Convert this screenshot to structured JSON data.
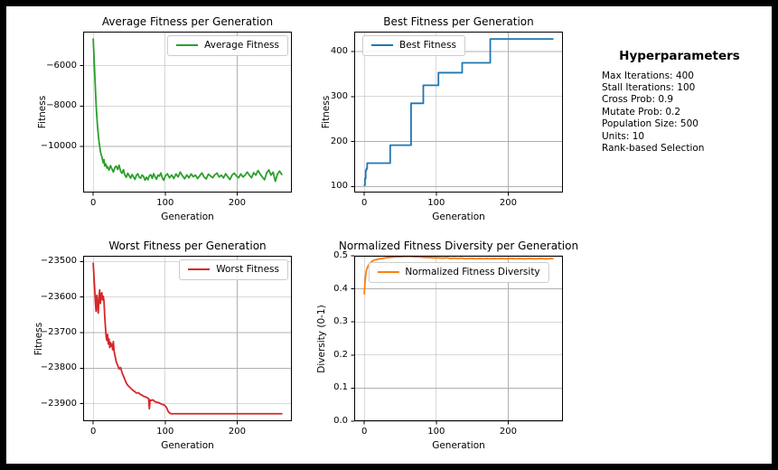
{
  "figure": {
    "background": "#ffffff",
    "frame_color": "#000000",
    "grid_color": "#b0b0b0",
    "spine_color": "#000000",
    "grid": true
  },
  "annotation": {
    "title": "Hyperparameters",
    "lines": [
      "Max Iterations: 400",
      "Stall Iterations: 100",
      "Cross Prob: 0.9",
      "Mutate Prob: 0.2",
      "Population Size: 500",
      "Units: 10",
      "Rank-based Selection"
    ]
  },
  "chart_data": [
    {
      "type": "line",
      "title": "Average Fitness per Generation",
      "xlabel": "Generation",
      "ylabel": "Fitness",
      "legend": "Average Fitness",
      "legend_pos": "upper right",
      "color": "#2ca02c",
      "step": false,
      "grid": true,
      "xlim": [
        -14,
        276
      ],
      "ylim": [
        -12293,
        -4307
      ],
      "xticks": {
        "values": [
          0,
          100,
          200
        ],
        "labels": [
          "0",
          "100",
          "200"
        ]
      },
      "yticks": {
        "values": [
          -6000,
          -8000,
          -10000
        ],
        "labels": [
          "−6000",
          "−8000",
          "−10000"
        ]
      },
      "points": [
        [
          0,
          -4670
        ],
        [
          1,
          -5450
        ],
        [
          2,
          -6300
        ],
        [
          3,
          -7100
        ],
        [
          4,
          -7900
        ],
        [
          5,
          -8500
        ],
        [
          6,
          -9000
        ],
        [
          7,
          -9400
        ],
        [
          8,
          -9750
        ],
        [
          9,
          -10000
        ],
        [
          10,
          -10250
        ],
        [
          11,
          -10400
        ],
        [
          12,
          -10520
        ],
        [
          13,
          -10680
        ],
        [
          14,
          -10820
        ],
        [
          15,
          -10660
        ],
        [
          16,
          -10980
        ],
        [
          17,
          -10870
        ],
        [
          18,
          -10920
        ],
        [
          19,
          -11080
        ],
        [
          20,
          -11020
        ],
        [
          22,
          -11180
        ],
        [
          24,
          -10960
        ],
        [
          26,
          -11120
        ],
        [
          28,
          -11280
        ],
        [
          30,
          -11060
        ],
        [
          32,
          -10980
        ],
        [
          34,
          -11150
        ],
        [
          36,
          -10940
        ],
        [
          38,
          -11230
        ],
        [
          40,
          -11340
        ],
        [
          42,
          -11160
        ],
        [
          44,
          -11420
        ],
        [
          46,
          -11540
        ],
        [
          48,
          -11330
        ],
        [
          50,
          -11460
        ],
        [
          52,
          -11580
        ],
        [
          54,
          -11400
        ],
        [
          56,
          -11520
        ],
        [
          58,
          -11640
        ],
        [
          60,
          -11440
        ],
        [
          62,
          -11360
        ],
        [
          64,
          -11540
        ],
        [
          66,
          -11580
        ],
        [
          68,
          -11420
        ],
        [
          70,
          -11500
        ],
        [
          72,
          -11680
        ],
        [
          74,
          -11540
        ],
        [
          76,
          -11660
        ],
        [
          78,
          -11460
        ],
        [
          80,
          -11410
        ],
        [
          82,
          -11590
        ],
        [
          84,
          -11360
        ],
        [
          86,
          -11520
        ],
        [
          88,
          -11630
        ],
        [
          90,
          -11430
        ],
        [
          92,
          -11480
        ],
        [
          94,
          -11320
        ],
        [
          96,
          -11570
        ],
        [
          98,
          -11680
        ],
        [
          100,
          -11480
        ],
        [
          103,
          -11360
        ],
        [
          106,
          -11560
        ],
        [
          109,
          -11420
        ],
        [
          112,
          -11600
        ],
        [
          115,
          -11370
        ],
        [
          118,
          -11520
        ],
        [
          121,
          -11280
        ],
        [
          124,
          -11460
        ],
        [
          127,
          -11610
        ],
        [
          130,
          -11420
        ],
        [
          133,
          -11560
        ],
        [
          136,
          -11370
        ],
        [
          139,
          -11510
        ],
        [
          142,
          -11430
        ],
        [
          145,
          -11600
        ],
        [
          148,
          -11460
        ],
        [
          151,
          -11320
        ],
        [
          154,
          -11520
        ],
        [
          157,
          -11620
        ],
        [
          160,
          -11380
        ],
        [
          163,
          -11470
        ],
        [
          166,
          -11560
        ],
        [
          169,
          -11410
        ],
        [
          172,
          -11330
        ],
        [
          175,
          -11520
        ],
        [
          178,
          -11430
        ],
        [
          181,
          -11570
        ],
        [
          184,
          -11360
        ],
        [
          187,
          -11510
        ],
        [
          190,
          -11650
        ],
        [
          193,
          -11420
        ],
        [
          196,
          -11330
        ],
        [
          199,
          -11470
        ],
        [
          202,
          -11560
        ],
        [
          205,
          -11370
        ],
        [
          208,
          -11520
        ],
        [
          211,
          -11430
        ],
        [
          214,
          -11280
        ],
        [
          217,
          -11430
        ],
        [
          220,
          -11560
        ],
        [
          223,
          -11310
        ],
        [
          226,
          -11430
        ],
        [
          229,
          -11200
        ],
        [
          232,
          -11380
        ],
        [
          235,
          -11520
        ],
        [
          238,
          -11660
        ],
        [
          241,
          -11320
        ],
        [
          244,
          -11170
        ],
        [
          247,
          -11430
        ],
        [
          250,
          -11280
        ],
        [
          253,
          -11740
        ],
        [
          256,
          -11380
        ],
        [
          259,
          -11230
        ],
        [
          262,
          -11400
        ]
      ]
    },
    {
      "type": "line",
      "title": "Best Fitness per Generation",
      "xlabel": "Generation",
      "ylabel": "Fitness",
      "legend": "Best Fitness",
      "legend_pos": "upper left",
      "color": "#1f77b4",
      "step": true,
      "grid": true,
      "xlim": [
        -14,
        276
      ],
      "ylim": [
        86.75,
        444.25
      ],
      "xticks": {
        "values": [
          0,
          100,
          200
        ],
        "labels": [
          "0",
          "100",
          "200"
        ]
      },
      "yticks": {
        "values": [
          100,
          200,
          300,
          400
        ],
        "labels": [
          "100",
          "200",
          "300",
          "400"
        ]
      },
      "points": [
        [
          0,
          103
        ],
        [
          1,
          118
        ],
        [
          2,
          136
        ],
        [
          3,
          140
        ],
        [
          4,
          152
        ],
        [
          35,
          152
        ],
        [
          36,
          192
        ],
        [
          64,
          192
        ],
        [
          65,
          285
        ],
        [
          81,
          285
        ],
        [
          82,
          325
        ],
        [
          102,
          325
        ],
        [
          103,
          353
        ],
        [
          135,
          353
        ],
        [
          136,
          375
        ],
        [
          174,
          375
        ],
        [
          175,
          428
        ],
        [
          262,
          428
        ]
      ]
    },
    {
      "type": "line",
      "title": "Worst Fitness per Generation",
      "xlabel": "Generation",
      "ylabel": "Fitness",
      "legend": "Worst Fitness",
      "legend_pos": "upper right",
      "color": "#d62728",
      "step": false,
      "grid": true,
      "xlim": [
        -14,
        276
      ],
      "ylim": [
        -23949,
        -23484
      ],
      "xticks": {
        "values": [
          0,
          100,
          200
        ],
        "labels": [
          "0",
          "100",
          "200"
        ]
      },
      "yticks": {
        "values": [
          -23500,
          -23600,
          -23700,
          -23800,
          -23900
        ],
        "labels": [
          "−23500",
          "−23600",
          "−23700",
          "−23800",
          "−23900"
        ]
      },
      "points": [
        [
          0,
          -23505
        ],
        [
          1,
          -23540
        ],
        [
          2,
          -23575
        ],
        [
          3,
          -23615
        ],
        [
          4,
          -23640
        ],
        [
          5,
          -23595
        ],
        [
          6,
          -23625
        ],
        [
          7,
          -23645
        ],
        [
          8,
          -23600
        ],
        [
          9,
          -23580
        ],
        [
          10,
          -23618
        ],
        [
          11,
          -23592
        ],
        [
          12,
          -23588
        ],
        [
          13,
          -23608
        ],
        [
          14,
          -23598
        ],
        [
          15,
          -23612
        ],
        [
          16,
          -23655
        ],
        [
          17,
          -23685
        ],
        [
          18,
          -23712
        ],
        [
          19,
          -23722
        ],
        [
          20,
          -23705
        ],
        [
          21,
          -23732
        ],
        [
          22,
          -23718
        ],
        [
          23,
          -23742
        ],
        [
          24,
          -23728
        ],
        [
          25,
          -23738
        ],
        [
          26,
          -23732
        ],
        [
          27,
          -23748
        ],
        [
          28,
          -23725
        ],
        [
          29,
          -23752
        ],
        [
          30,
          -23762
        ],
        [
          32,
          -23782
        ],
        [
          34,
          -23792
        ],
        [
          36,
          -23802
        ],
        [
          38,
          -23798
        ],
        [
          40,
          -23812
        ],
        [
          42,
          -23822
        ],
        [
          44,
          -23832
        ],
        [
          46,
          -23842
        ],
        [
          48,
          -23848
        ],
        [
          50,
          -23852
        ],
        [
          52,
          -23856
        ],
        [
          55,
          -23862
        ],
        [
          58,
          -23866
        ],
        [
          60,
          -23870
        ],
        [
          63,
          -23869
        ],
        [
          65,
          -23873
        ],
        [
          68,
          -23876
        ],
        [
          70,
          -23879
        ],
        [
          73,
          -23881
        ],
        [
          75,
          -23883
        ],
        [
          77,
          -23886
        ],
        [
          78,
          -23914
        ],
        [
          79,
          -23889
        ],
        [
          80,
          -23891
        ],
        [
          83,
          -23889
        ],
        [
          85,
          -23893
        ],
        [
          88,
          -23896
        ],
        [
          90,
          -23896
        ],
        [
          93,
          -23899
        ],
        [
          95,
          -23901
        ],
        [
          98,
          -23903
        ],
        [
          100,
          -23906
        ],
        [
          102,
          -23911
        ],
        [
          104,
          -23921
        ],
        [
          106,
          -23926
        ],
        [
          108,
          -23928
        ],
        [
          262,
          -23928
        ]
      ]
    },
    {
      "type": "line",
      "title": "Normalized Fitness Diversity per Generation",
      "xlabel": "Generation",
      "ylabel": "Diversity (0-1)",
      "legend": "Normalized Fitness Diversity",
      "legend_pos": "upper center",
      "color": "#ff7f0e",
      "step": false,
      "grid": true,
      "xlim": [
        -14,
        276
      ],
      "ylim": [
        0,
        0.5
      ],
      "xticks": {
        "values": [
          0,
          100,
          200
        ],
        "labels": [
          "0",
          "100",
          "200"
        ]
      },
      "yticks": {
        "values": [
          0.0,
          0.1,
          0.2,
          0.3,
          0.4,
          0.5
        ],
        "labels": [
          "0.0",
          "0.1",
          "0.2",
          "0.3",
          "0.4",
          "0.5"
        ]
      },
      "points": [
        [
          0,
          0.385
        ],
        [
          1,
          0.422
        ],
        [
          2,
          0.442
        ],
        [
          3,
          0.456
        ],
        [
          4,
          0.463
        ],
        [
          5,
          0.468
        ],
        [
          6,
          0.472
        ],
        [
          8,
          0.478
        ],
        [
          10,
          0.482
        ],
        [
          12,
          0.485
        ],
        [
          14,
          0.487
        ],
        [
          16,
          0.488
        ],
        [
          18,
          0.489
        ],
        [
          20,
          0.49
        ],
        [
          25,
          0.492
        ],
        [
          30,
          0.494
        ],
        [
          35,
          0.495
        ],
        [
          40,
          0.496
        ],
        [
          45,
          0.497
        ],
        [
          50,
          0.497
        ],
        [
          55,
          0.498
        ],
        [
          60,
          0.498
        ],
        [
          65,
          0.498
        ],
        [
          70,
          0.497
        ],
        [
          75,
          0.497
        ],
        [
          80,
          0.496
        ],
        [
          85,
          0.495
        ],
        [
          90,
          0.495
        ],
        [
          95,
          0.494
        ],
        [
          100,
          0.494
        ],
        [
          110,
          0.493
        ],
        [
          115,
          0.494
        ],
        [
          120,
          0.492
        ],
        [
          125,
          0.493
        ],
        [
          130,
          0.492
        ],
        [
          135,
          0.493
        ],
        [
          140,
          0.491
        ],
        [
          145,
          0.492
        ],
        [
          150,
          0.492
        ],
        [
          155,
          0.491
        ],
        [
          160,
          0.492
        ],
        [
          165,
          0.491
        ],
        [
          170,
          0.492
        ],
        [
          175,
          0.491
        ],
        [
          180,
          0.492
        ],
        [
          185,
          0.491
        ],
        [
          190,
          0.492
        ],
        [
          195,
          0.491
        ],
        [
          200,
          0.491
        ],
        [
          205,
          0.492
        ],
        [
          210,
          0.491
        ],
        [
          215,
          0.492
        ],
        [
          220,
          0.491
        ],
        [
          225,
          0.491
        ],
        [
          230,
          0.492
        ],
        [
          235,
          0.491
        ],
        [
          240,
          0.491
        ],
        [
          245,
          0.492
        ],
        [
          250,
          0.491
        ],
        [
          255,
          0.491
        ],
        [
          260,
          0.492
        ],
        [
          262,
          0.491
        ]
      ]
    }
  ]
}
